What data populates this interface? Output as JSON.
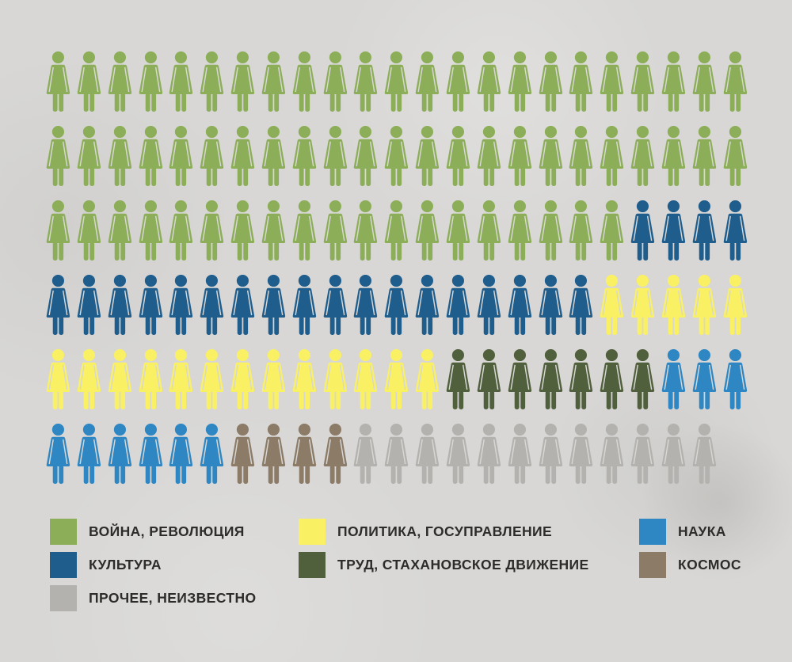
{
  "chart_data": {
    "type": "pictogram",
    "title": "",
    "unit_icon": "woman-figure",
    "total_units": 137,
    "grid": {
      "rows": 6,
      "max_icons_per_row": 23
    },
    "legend_position": "bottom",
    "categories": [
      {
        "label": "ВОЙНА, РЕВОЛЮЦИЯ",
        "color": "#8cae58",
        "count": 65
      },
      {
        "label": "КУЛЬТУРА",
        "color": "#1e5d8c",
        "count": 22
      },
      {
        "label": "ПОЛИТИКА, ГОСУПРАВЛЕНИЕ",
        "color": "#f9f063",
        "count": 18
      },
      {
        "label": "ТРУД, СТАХАНОВСКОЕ ДВИЖЕНИЕ",
        "color": "#50603c",
        "count": 7
      },
      {
        "label": "НАУКА",
        "color": "#2e86c3",
        "count": 9
      },
      {
        "label": "КОСМОС",
        "color": "#8b7b67",
        "count": 4
      },
      {
        "label": "ПРОЧЕЕ, НЕИЗВЕСТНО",
        "color": "#b3b2af",
        "count": 12
      }
    ],
    "rows": [
      [
        {
          "category": 0,
          "count": 23
        }
      ],
      [
        {
          "category": 0,
          "count": 23
        }
      ],
      [
        {
          "category": 0,
          "count": 19
        },
        {
          "category": 1,
          "count": 4
        }
      ],
      [
        {
          "category": 1,
          "count": 18
        },
        {
          "category": 2,
          "count": 5
        }
      ],
      [
        {
          "category": 2,
          "count": 13
        },
        {
          "category": 3,
          "count": 7
        },
        {
          "category": 4,
          "count": 3
        }
      ],
      [
        {
          "category": 4,
          "count": 6
        },
        {
          "category": 5,
          "count": 4
        },
        {
          "category": 6,
          "count": 12
        }
      ]
    ],
    "legend_columns": [
      [
        0,
        1,
        6
      ],
      [
        2,
        3
      ],
      [
        4,
        5
      ]
    ]
  }
}
